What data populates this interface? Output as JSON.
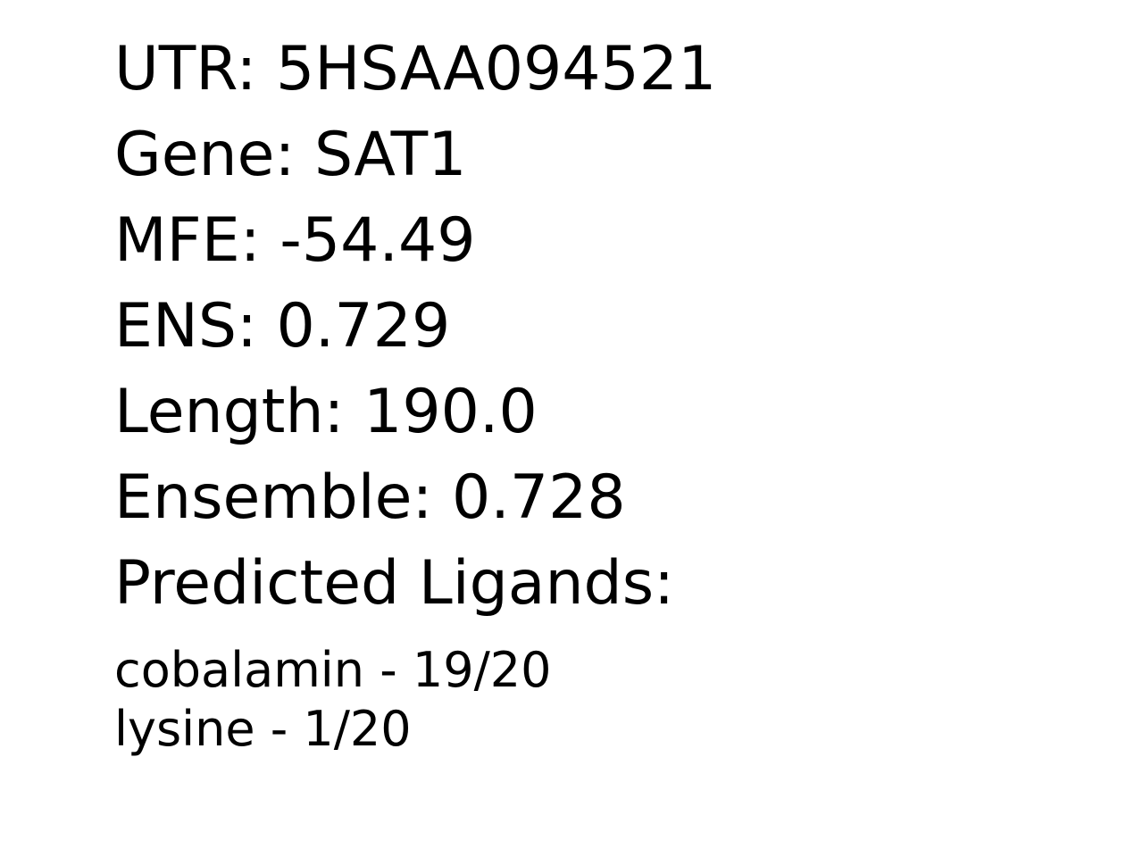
{
  "fields": [
    {
      "label": "UTR",
      "value": "5HSAA094521"
    },
    {
      "label": "Gene",
      "value": "SAT1"
    },
    {
      "label": "MFE",
      "value": "-54.49"
    },
    {
      "label": "ENS",
      "value": "0.729"
    },
    {
      "label": "Length",
      "value": "190.0"
    },
    {
      "label": "Ensemble",
      "value": "0.728"
    }
  ],
  "ligands_heading": "Predicted Ligands:",
  "ligands": [
    {
      "name": "cobalamin",
      "score": "19/20"
    },
    {
      "name": "lysine",
      "score": "1/20"
    }
  ],
  "colors": {
    "background": "#ffffff",
    "text": "#000000"
  }
}
